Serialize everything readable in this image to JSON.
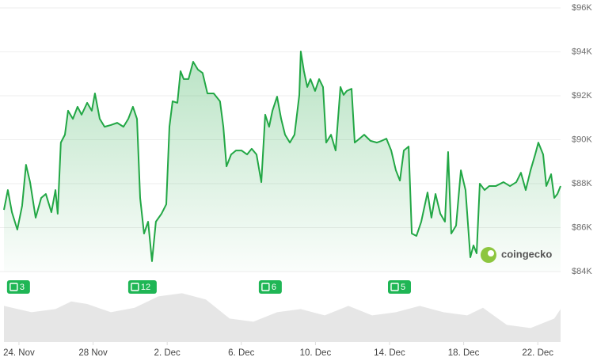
{
  "chart_data": {
    "type": "line",
    "x": [
      -0.81,
      -0.6,
      -0.38,
      -0.09,
      0.17,
      0.38,
      0.6,
      0.9,
      1.2,
      1.45,
      1.75,
      1.97,
      2.09,
      2.26,
      2.48,
      2.65,
      2.91,
      3.16,
      3.38,
      3.68,
      3.93,
      4.1,
      4.36,
      4.62,
      4.96,
      5.3,
      5.64,
      5.9,
      6.15,
      6.37,
      6.54,
      6.75,
      6.97,
      7.18,
      7.39,
      7.69,
      7.95,
      8.12,
      8.29,
      8.55,
      8.72,
      8.89,
      9.15,
      9.4,
      9.66,
      9.91,
      10.17,
      10.51,
      10.85,
      11.03,
      11.2,
      11.45,
      11.71,
      12.01,
      12.31,
      12.56,
      12.82,
      13.08,
      13.29,
      13.5,
      13.68,
      13.93,
      14.15,
      14.36,
      14.62,
      14.87,
      15.13,
      15.21,
      15.38,
      15.56,
      15.73,
      15.98,
      16.2,
      16.41,
      16.58,
      16.84,
      17.09,
      17.35,
      17.52,
      17.69,
      17.95,
      18.12,
      18.38,
      18.63,
      18.97,
      19.32,
      19.57,
      19.83,
      20.09,
      20.34,
      20.56,
      20.77,
      21.03,
      21.2,
      21.45,
      21.71,
      22.05,
      22.26,
      22.48,
      22.74,
      22.99,
      23.16,
      23.33,
      23.59,
      23.85,
      24.1,
      24.36,
      24.53,
      24.7,
      24.87,
      25.13,
      25.38,
      25.73,
      26.15,
      26.5,
      26.84,
      27.09,
      27.35,
      27.61,
      27.86,
      28.03,
      28.29,
      28.46,
      28.72,
      28.89,
      29.06,
      29.23
    ],
    "series": [
      {
        "color": "#22a745",
        "values": [
          86810,
          87710,
          86700,
          85910,
          86990,
          88860,
          88070,
          86450,
          87350,
          87530,
          86700,
          87710,
          86630,
          89870,
          90230,
          91320,
          90950,
          91500,
          91140,
          91680,
          91320,
          92110,
          90950,
          90590,
          90670,
          90770,
          90590,
          90950,
          91500,
          90950,
          87350,
          85730,
          86270,
          84470,
          86270,
          86630,
          87060,
          90590,
          91750,
          91680,
          93120,
          92760,
          92760,
          93550,
          93190,
          93040,
          92110,
          92110,
          91750,
          90590,
          88790,
          89330,
          89510,
          89510,
          89330,
          89590,
          89330,
          88070,
          91140,
          90590,
          91320,
          91960,
          90950,
          90230,
          89870,
          90230,
          92040,
          94020,
          93120,
          92400,
          92760,
          92220,
          92760,
          92400,
          89870,
          90230,
          89510,
          92400,
          92040,
          92220,
          92320,
          89870,
          90050,
          90230,
          89950,
          89870,
          89950,
          90050,
          89510,
          88610,
          88140,
          89510,
          89690,
          85730,
          85620,
          86270,
          87600,
          86450,
          87530,
          86630,
          86270,
          89440,
          85730,
          86090,
          88610,
          87710,
          84650,
          85190,
          84830,
          88000,
          87710,
          87890,
          87890,
          88070,
          87890,
          88070,
          88500,
          87710,
          88610,
          89330,
          89870,
          89330,
          87890,
          88430,
          87350,
          87530,
          87890
        ]
      }
    ],
    "volume": {
      "color": "#e6e6e6",
      "x": [
        -0.81,
        0.68,
        1.97,
        2.82,
        3.68,
        4.96,
        6.24,
        7.52,
        8.8,
        10.09,
        11.37,
        12.65,
        13.93,
        15.21,
        16.5,
        17.78,
        19.06,
        20.34,
        21.63,
        22.91,
        24.19,
        25.04,
        26.33,
        27.61,
        28.89,
        29.23
      ],
      "values": [
        57,
        47,
        52,
        64,
        60,
        47,
        54,
        72,
        77,
        67,
        37,
        32,
        47,
        52,
        42,
        57,
        42,
        47,
        57,
        47,
        42,
        54,
        27,
        22,
        37,
        52
      ]
    },
    "xlim": [
      -0.81,
      29.23
    ],
    "ylim": [
      84000,
      96000
    ],
    "xticks": [
      {
        "value": 0,
        "label": "24. Nov"
      },
      {
        "value": 4,
        "label": "28 Nov"
      },
      {
        "value": 8,
        "label": "2. Dec"
      },
      {
        "value": 12,
        "label": "6. Dec"
      },
      {
        "value": 16,
        "label": "10. Dec"
      },
      {
        "value": 20,
        "label": "14. Dec"
      },
      {
        "value": 24,
        "label": "18. Dec"
      },
      {
        "value": 28,
        "label": "22. Dec"
      }
    ],
    "yticks": [
      {
        "value": 84000,
        "label": "$84K"
      },
      {
        "value": 86000,
        "label": "$86K"
      },
      {
        "value": 88000,
        "label": "$88K"
      },
      {
        "value": 90000,
        "label": "$90K"
      },
      {
        "value": 92000,
        "label": "$92K"
      },
      {
        "value": 94000,
        "label": "$94K"
      },
      {
        "value": 96000,
        "label": "$96K"
      }
    ],
    "grid": true,
    "annotations": [
      {
        "x": -0.09,
        "label": "3"
      },
      {
        "x": 6.45,
        "label": "12"
      },
      {
        "x": 13.5,
        "label": "6"
      },
      {
        "x": 20.47,
        "label": "5"
      }
    ],
    "watermark": "coingecko"
  }
}
